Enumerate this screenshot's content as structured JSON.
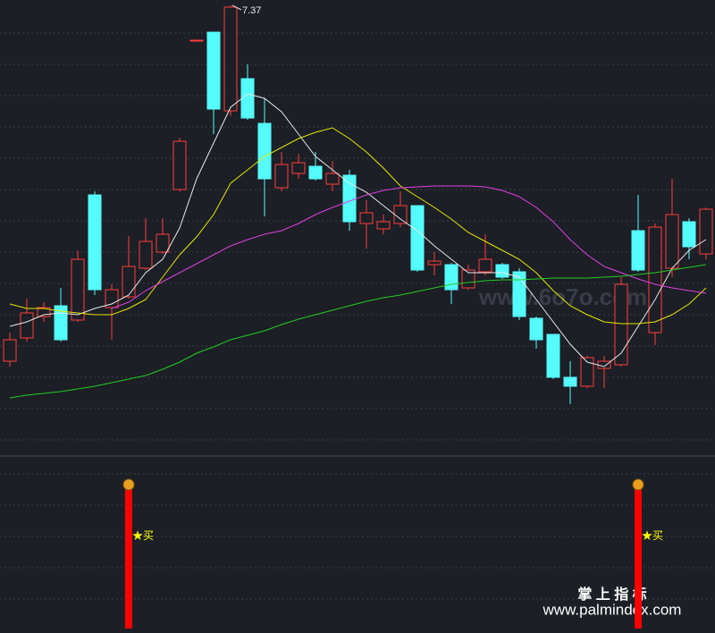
{
  "chart_data": {
    "type": "candlestick",
    "ylim": [
      4.9,
      7.4
    ],
    "up_color": "#ff3c3c",
    "down_color": "#54fcfc",
    "open": [
      5.38,
      5.51,
      5.63,
      5.69,
      5.61,
      6.31,
      5.68,
      5.74,
      5.9,
      5.99,
      6.34,
      7.175,
      7.22,
      6.78,
      6.96,
      6.71,
      6.35,
      6.43,
      6.47,
      6.37,
      6.42,
      6.15,
      6.12,
      6.15,
      6.25,
      5.92,
      5.92,
      5.79,
      5.88,
      5.92,
      5.88,
      5.62,
      5.53,
      5.29,
      5.24,
      5.34,
      5.36,
      6.11,
      5.54,
      5.9,
      6.16,
      5.98
    ],
    "high": [
      5.54,
      5.73,
      5.71,
      5.79,
      6.0,
      6.33,
      5.81,
      6.08,
      6.18,
      6.18,
      6.63,
      7.175,
      7.22,
      7.37,
      7.04,
      6.85,
      6.55,
      6.54,
      6.55,
      6.5,
      6.45,
      6.28,
      6.2,
      6.33,
      6.25,
      5.99,
      5.93,
      5.92,
      6.09,
      5.93,
      5.9,
      5.63,
      5.53,
      5.38,
      5.41,
      5.41,
      5.85,
      6.31,
      6.15,
      6.4,
      6.18,
      6.24
    ],
    "low": [
      5.35,
      5.49,
      5.6,
      5.49,
      5.6,
      5.75,
      5.5,
      5.73,
      5.89,
      5.98,
      6.33,
      7.175,
      6.65,
      6.75,
      6.73,
      6.19,
      6.33,
      6.4,
      6.39,
      6.33,
      6.11,
      6.01,
      6.09,
      6.13,
      5.88,
      5.86,
      5.7,
      5.78,
      5.86,
      5.84,
      5.61,
      5.45,
      5.28,
      5.14,
      5.23,
      5.23,
      5.35,
      5.88,
      5.47,
      5.85,
      5.95,
      5.95
    ],
    "close": [
      5.5,
      5.65,
      5.68,
      5.5,
      5.95,
      5.78,
      5.78,
      5.91,
      6.05,
      6.09,
      6.61,
      7.175,
      6.79,
      7.36,
      6.74,
      6.4,
      6.48,
      6.49,
      6.4,
      6.43,
      6.16,
      6.21,
      6.16,
      6.25,
      5.89,
      5.94,
      5.78,
      5.89,
      5.95,
      5.85,
      5.63,
      5.5,
      5.29,
      5.24,
      5.4,
      5.38,
      5.81,
      5.89,
      6.13,
      6.2,
      6.02,
      6.23
    ],
    "series": [
      {
        "color": "#e8e8e8",
        "values": [
          5.575,
          5.6,
          5.64,
          5.65,
          5.64,
          5.675,
          5.7,
          5.75,
          5.875,
          5.95,
          6.125,
          6.4,
          6.6,
          6.8,
          6.875,
          6.85,
          6.775,
          6.65,
          6.525,
          6.45,
          6.375,
          6.325,
          6.25,
          6.175,
          6.11,
          6.025,
          5.95,
          5.875,
          5.875,
          5.875,
          5.85,
          5.725,
          5.6,
          5.475,
          5.375,
          5.35,
          5.425,
          5.575,
          5.725,
          5.9,
          6.0,
          6.06
        ]
      },
      {
        "color": "#e6e600",
        "values": [
          5.7,
          5.675,
          5.675,
          5.66,
          5.65,
          5.64,
          5.64,
          5.675,
          5.725,
          5.85,
          5.975,
          6.075,
          6.2,
          6.375,
          6.45,
          6.525,
          6.575,
          6.625,
          6.66,
          6.685,
          6.625,
          6.55,
          6.46,
          6.36,
          6.3,
          6.24,
          6.175,
          6.1,
          6.05,
          6.0,
          5.95,
          5.875,
          5.775,
          5.69,
          5.64,
          5.6,
          5.59,
          5.59,
          5.6,
          5.64,
          5.7,
          5.79
        ]
      },
      {
        "color": "#e040e0",
        "values": [
          null,
          null,
          null,
          null,
          null,
          null,
          5.675,
          5.71,
          5.775,
          5.825,
          5.875,
          5.925,
          5.975,
          6.025,
          6.06,
          6.09,
          6.11,
          6.15,
          6.2,
          6.24,
          6.275,
          6.31,
          6.335,
          6.35,
          6.355,
          6.36,
          6.36,
          6.36,
          6.355,
          6.335,
          6.3,
          6.24,
          6.16,
          6.06,
          5.975,
          5.91,
          5.875,
          5.84,
          5.81,
          5.79,
          5.775,
          5.76
        ]
      },
      {
        "color": "#22cc22",
        "values": [
          5.175,
          5.19,
          5.2,
          5.21,
          5.225,
          5.24,
          5.26,
          5.28,
          5.3,
          5.335,
          5.375,
          5.425,
          5.46,
          5.5,
          5.525,
          5.55,
          5.585,
          5.615,
          5.64,
          5.665,
          5.69,
          5.715,
          5.735,
          5.75,
          5.77,
          5.79,
          5.81,
          5.82,
          5.83,
          5.835,
          5.835,
          5.84,
          5.845,
          5.845,
          5.845,
          5.85,
          5.855,
          5.865,
          5.875,
          5.89,
          5.905,
          5.92
        ]
      }
    ],
    "signal": {
      "color": "#ff0000",
      "label": "★买",
      "ylim": [
        0,
        1
      ],
      "values": [
        0,
        0,
        0,
        0,
        0,
        0,
        0,
        1,
        0,
        0,
        0,
        0,
        0,
        0,
        0,
        0,
        0,
        0,
        0,
        0,
        0,
        0,
        0,
        0,
        0,
        0,
        0,
        0,
        0,
        0,
        0,
        0,
        0,
        0,
        0,
        0,
        0,
        1,
        0,
        0,
        0,
        0
      ]
    }
  },
  "watermarks": [
    "www.6o7o.com",
    "掌 上 指 标",
    "www.palmindex.com"
  ]
}
